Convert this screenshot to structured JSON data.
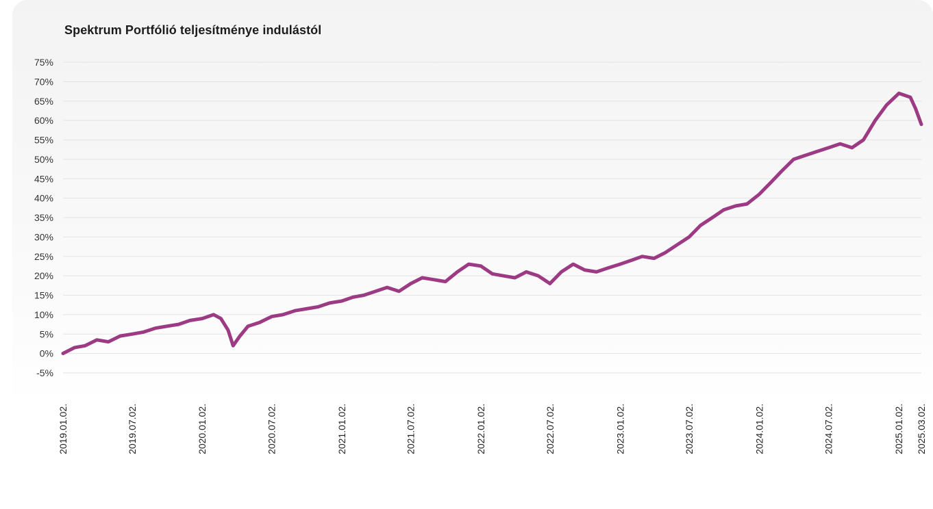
{
  "chart_data": {
    "type": "line",
    "title": "Spektrum Portfólió teljesítménye indulástól",
    "xlabel": "",
    "ylabel": "",
    "ylim": [
      -5,
      75
    ],
    "y_ticks": [
      "-5%",
      "0%",
      "5%",
      "10%",
      "15%",
      "20%",
      "25%",
      "30%",
      "35%",
      "40%",
      "45%",
      "50%",
      "55%",
      "60%",
      "65%",
      "70%",
      "75%"
    ],
    "x_ticks": [
      "2019.01.02.",
      "2019.07.02.",
      "2020.01.02.",
      "2020.07.02.",
      "2021.01.02.",
      "2021.07.02.",
      "2022.01.02.",
      "2022.07.02.",
      "2023.01.02.",
      "2023.07.02.",
      "2024.01.02.",
      "2024.07.02.",
      "2025.01.02.",
      "2025.03.02."
    ],
    "grid": true,
    "legend": "none",
    "color": "#9c3a84",
    "series": [
      {
        "x": [
          "2019.01.02.",
          "2019.02.01.",
          "2019.03.01.",
          "2019.04.01.",
          "2019.05.01.",
          "2019.06.01.",
          "2019.07.02.",
          "2019.08.01.",
          "2019.09.01.",
          "2019.10.01.",
          "2019.11.01.",
          "2019.12.01.",
          "2020.01.02.",
          "2020.02.01.",
          "2020.02.20.",
          "2020.03.10.",
          "2020.03.23.",
          "2020.04.10.",
          "2020.05.01.",
          "2020.06.01.",
          "2020.07.02.",
          "2020.08.01.",
          "2020.09.01.",
          "2020.10.01.",
          "2020.11.01.",
          "2020.12.01.",
          "2021.01.02.",
          "2021.02.01.",
          "2021.03.01.",
          "2021.04.01.",
          "2021.05.01.",
          "2021.06.01.",
          "2021.07.02.",
          "2021.08.01.",
          "2021.09.01.",
          "2021.10.01.",
          "2021.11.01.",
          "2021.12.01.",
          "2022.01.02.",
          "2022.02.01.",
          "2022.03.01.",
          "2022.04.01.",
          "2022.05.01.",
          "2022.06.01.",
          "2022.07.02.",
          "2022.08.01.",
          "2022.09.01.",
          "2022.10.01.",
          "2022.11.01.",
          "2022.12.01.",
          "2023.01.02.",
          "2023.02.01.",
          "2023.03.01.",
          "2023.04.01.",
          "2023.05.01.",
          "2023.06.01.",
          "2023.07.02.",
          "2023.08.01.",
          "2023.09.01.",
          "2023.10.01.",
          "2023.11.01.",
          "2023.12.01.",
          "2024.01.02.",
          "2024.02.01.",
          "2024.03.01.",
          "2024.04.01.",
          "2024.05.01.",
          "2024.06.01.",
          "2024.07.02.",
          "2024.08.01.",
          "2024.09.01.",
          "2024.10.01.",
          "2024.11.01.",
          "2024.12.01.",
          "2025.01.02.",
          "2025.02.01.",
          "2025.02.15.",
          "2025.03.02."
        ],
        "values": [
          0,
          1.5,
          2,
          3.5,
          3,
          4.5,
          5,
          5.5,
          6.5,
          7,
          7.5,
          8.5,
          9,
          10,
          9,
          6,
          2,
          4.5,
          7,
          8,
          9.5,
          10,
          11,
          11.5,
          12,
          13,
          13.5,
          14.5,
          15,
          16,
          17,
          16,
          18,
          19.5,
          19,
          18.5,
          21,
          23,
          22.5,
          20.5,
          20,
          19.5,
          21,
          20,
          18,
          21,
          23,
          21.5,
          21,
          22,
          23,
          24,
          25,
          24.5,
          26,
          28,
          30,
          33,
          35,
          37,
          38,
          38.5,
          41,
          44,
          47,
          50,
          51,
          52,
          53,
          54,
          53,
          55,
          60,
          64,
          67,
          66,
          63,
          59
        ]
      }
    ]
  }
}
